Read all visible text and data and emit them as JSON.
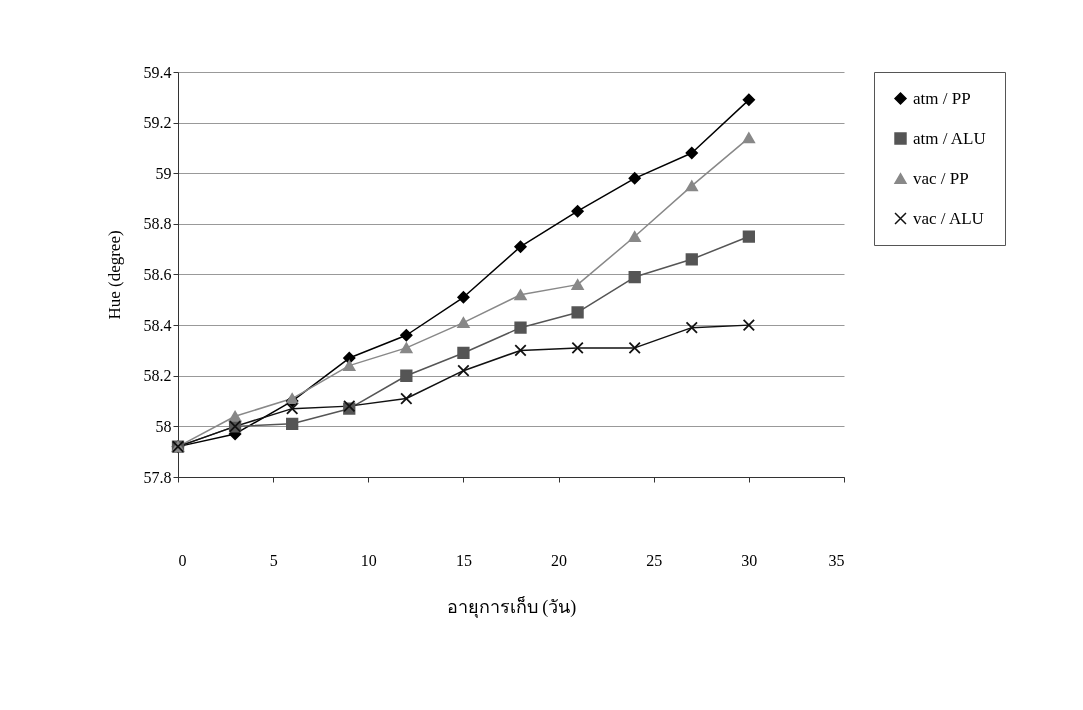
{
  "chart_data": {
    "type": "line",
    "xlabel": "อายุการเก็บ  (วัน)",
    "ylabel": "Hue (degree)",
    "x": [
      0,
      3,
      6,
      9,
      12,
      15,
      18,
      21,
      24,
      27,
      30
    ],
    "xlim": [
      0,
      35
    ],
    "xticks": [
      0,
      5,
      10,
      15,
      20,
      25,
      30,
      35
    ],
    "ylim": [
      57.8,
      59.4
    ],
    "yticks": [
      57.8,
      58,
      58.2,
      58.4,
      58.6,
      58.8,
      59,
      59.2,
      59.4
    ],
    "grid": "y",
    "legend": "right",
    "series": [
      {
        "name": "atm / PP",
        "color": "#000000",
        "marker": "diamond",
        "values": [
          57.92,
          57.97,
          58.1,
          58.27,
          58.36,
          58.51,
          58.71,
          58.85,
          58.98,
          59.08,
          59.29
        ]
      },
      {
        "name": "atm / ALU",
        "color": "#555555",
        "marker": "square",
        "values": [
          57.92,
          58.0,
          58.01,
          58.07,
          58.2,
          58.29,
          58.39,
          58.45,
          58.59,
          58.66,
          58.75
        ]
      },
      {
        "name": "vac / PP",
        "color": "#888888",
        "marker": "triangle",
        "values": [
          57.92,
          58.04,
          58.11,
          58.24,
          58.31,
          58.41,
          58.52,
          58.56,
          58.75,
          58.95,
          59.14
        ]
      },
      {
        "name": "vac / ALU",
        "color": "#111111",
        "marker": "cross",
        "values": [
          57.92,
          58.0,
          58.07,
          58.08,
          58.11,
          58.22,
          58.3,
          58.31,
          58.31,
          58.39,
          58.4
        ]
      }
    ]
  }
}
